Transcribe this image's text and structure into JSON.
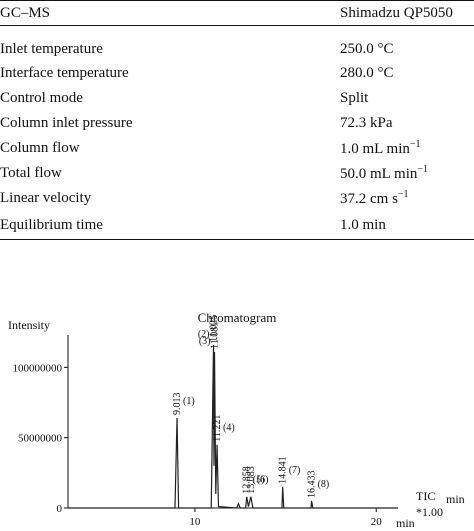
{
  "table": {
    "header": [
      "GC–MS",
      "Shimadzu QP5050"
    ],
    "rows": [
      [
        "Inlet temperature",
        {
          "text": "250.0 °C"
        }
      ],
      [
        "Interface temperature",
        {
          "text": "280.0 °C"
        }
      ],
      [
        "Control mode",
        {
          "text": "Split"
        }
      ],
      [
        "Column inlet pressure",
        {
          "text": "72.3 kPa"
        }
      ],
      [
        "Column flow",
        {
          "text": "1.0 mL min",
          "sup": "−1"
        }
      ],
      [
        "Total flow",
        {
          "text": "50.0 mL min",
          "sup": "−1"
        }
      ],
      [
        "Linear velocity",
        {
          "text": "37.2 cm s",
          "sup": "−1"
        }
      ],
      [
        "Equilibrium time",
        {
          "text": "1.0 min"
        }
      ]
    ]
  },
  "chart_data": {
    "type": "line",
    "title": "Chromatogram",
    "y_label": "Intensity",
    "x_label": "min",
    "trace_label": "TIC",
    "trace_unit": "min",
    "trace_scale": "*1.00",
    "color": "#222222",
    "xlim": [
      3,
      21.2
    ],
    "ylim": [
      0,
      123000000
    ],
    "xticks": [
      10,
      20
    ],
    "yticks": [
      0,
      50000000,
      100000000
    ],
    "x": [
      3,
      8.9,
      9.013,
      9.1,
      10.9,
      11.025,
      11.05,
      11.081,
      11.15,
      11.221,
      11.3,
      12.3,
      12.4,
      12.5,
      12.8,
      12.858,
      12.95,
      13.083,
      13.2,
      14.8,
      14.841,
      14.9,
      16.4,
      16.433,
      16.5,
      21.2
    ],
    "values": [
      0,
      0,
      64000000,
      0,
      0,
      116000000,
      30000000,
      111000000,
      10000000,
      45000000,
      1000000,
      0,
      3000000,
      0,
      0,
      8000000,
      1000000,
      8000000,
      0,
      0,
      15000000,
      0,
      0,
      5000000,
      0,
      0
    ],
    "annotations": [
      {
        "label": "9.013",
        "number": "(1)",
        "x": 9.013,
        "y": 64000000
      },
      {
        "label": "11.025",
        "number": "(2)",
        "x": 11.025,
        "y": 116000000
      },
      {
        "label": "11.081",
        "number": "(3)",
        "x": 11.081,
        "y": 111000000
      },
      {
        "label": "11.221",
        "number": "(4)",
        "x": 11.221,
        "y": 45000000
      },
      {
        "label": "12.858",
        "number": "(5)",
        "x": 12.858,
        "y": 8000000
      },
      {
        "label": "13.083",
        "number": "(6)",
        "x": 13.083,
        "y": 8000000
      },
      {
        "label": "14.841",
        "number": "(7)",
        "x": 14.841,
        "y": 15000000
      },
      {
        "label": "16.433",
        "number": "(8)",
        "x": 16.433,
        "y": 5000000
      }
    ]
  }
}
